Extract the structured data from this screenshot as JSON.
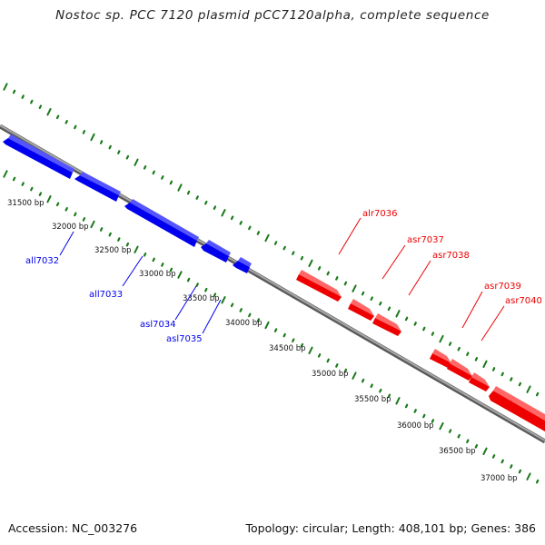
{
  "title": "Nostoc sp. PCC 7120 plasmid pCC7120alpha, complete sequence",
  "footer": {
    "accession": "Accession: NC_003276",
    "topology": "Topology: circular; Length: 408,101 bp; Genes: 386"
  },
  "colors": {
    "reverse_strand": "#0000ee",
    "forward_strand": "#ee0000",
    "ticks": "#1a7a1a",
    "backbone": "#8a8a8a"
  },
  "bp_labels": [
    "31500 bp",
    "32000 bp",
    "32500 bp",
    "33000 bp",
    "33500 bp",
    "34000 bp",
    "34500 bp",
    "35000 bp",
    "35500 bp",
    "36000 bp",
    "36500 bp",
    "37000 bp"
  ],
  "genes": [
    {
      "name": "all7032",
      "strand": "reverse"
    },
    {
      "name": "all7033",
      "strand": "reverse"
    },
    {
      "name": "asl7034",
      "strand": "reverse"
    },
    {
      "name": "asl7035",
      "strand": "reverse"
    },
    {
      "name": "alr7036",
      "strand": "forward"
    },
    {
      "name": "asr7037",
      "strand": "forward"
    },
    {
      "name": "asr7038",
      "strand": "forward"
    },
    {
      "name": "asr7039",
      "strand": "forward"
    },
    {
      "name": "asr7040",
      "strand": "forward"
    }
  ]
}
